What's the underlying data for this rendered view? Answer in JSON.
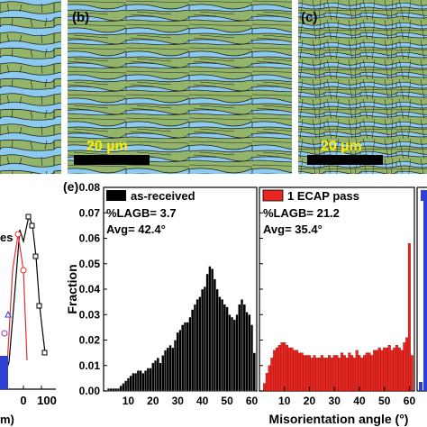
{
  "panel_labels": {
    "b": "(b)",
    "c": "(c)",
    "e": "(e)"
  },
  "micrographs": {
    "scale_bar_b": "20 µm",
    "scale_bar_c": "20 µm",
    "colors": {
      "grain_green": "#93b56b",
      "grain_blue": "#8dcaf0",
      "boundary": "#1f1f1f",
      "scale_text": "#ffee00"
    }
  },
  "left_partial": {
    "text_es": "es",
    "text_m": "m)",
    "x_ticks": [
      "0",
      "100"
    ]
  },
  "shared": {
    "ylabel": "Fraction",
    "xlabel": "Misorientation angle (°)",
    "y_ticks": [
      "0.00",
      "0.01",
      "0.02",
      "0.03",
      "0.04",
      "0.05",
      "0.06",
      "0.07",
      "0.08"
    ],
    "x_ticks": [
      "10",
      "20",
      "30",
      "40",
      "50",
      "60"
    ]
  },
  "chart_data": [
    {
      "type": "bar",
      "title": "",
      "legend": "as-received",
      "annotation_lagb": "%LAGB= 3.7",
      "annotation_avg": "Avg= 42.4°",
      "color": "#000000",
      "xlabel": "Misorientation angle (°)",
      "ylabel": "Fraction",
      "xlim": [
        0,
        62
      ],
      "ylim": [
        0,
        0.08
      ],
      "bin_width": 1,
      "x": [
        2,
        3,
        4,
        5,
        6,
        7,
        8,
        9,
        10,
        11,
        12,
        13,
        14,
        15,
        16,
        17,
        18,
        19,
        20,
        21,
        22,
        23,
        24,
        25,
        26,
        27,
        28,
        29,
        30,
        31,
        32,
        33,
        34,
        35,
        36,
        37,
        38,
        39,
        40,
        41,
        42,
        43,
        44,
        45,
        46,
        47,
        48,
        49,
        50,
        51,
        52,
        53,
        54,
        55,
        56,
        57,
        58,
        59,
        60,
        61
      ],
      "values": [
        0.001,
        0.001,
        0.001,
        0.001,
        0.001,
        0.002,
        0.003,
        0.004,
        0.005,
        0.006,
        0.007,
        0.007,
        0.008,
        0.008,
        0.007,
        0.008,
        0.009,
        0.009,
        0.011,
        0.012,
        0.013,
        0.011,
        0.014,
        0.016,
        0.017,
        0.018,
        0.017,
        0.02,
        0.023,
        0.024,
        0.026,
        0.027,
        0.027,
        0.029,
        0.032,
        0.034,
        0.036,
        0.037,
        0.04,
        0.041,
        0.046,
        0.049,
        0.048,
        0.044,
        0.04,
        0.037,
        0.036,
        0.034,
        0.033,
        0.03,
        0.029,
        0.028,
        0.03,
        0.034,
        0.036,
        0.034,
        0.031,
        0.03,
        0.026,
        0.015
      ]
    },
    {
      "type": "bar",
      "title": "",
      "legend": "1 ECAP pass",
      "annotation_lagb": "%LAGB= 21.2",
      "annotation_avg": "Avg= 35.4°",
      "color": "#e8251f",
      "xlabel": "Misorientation angle (°)",
      "ylabel": "",
      "xlim": [
        0,
        62
      ],
      "ylim": [
        0,
        0.08
      ],
      "bin_width": 1,
      "x": [
        2,
        3,
        4,
        5,
        6,
        7,
        8,
        9,
        10,
        11,
        12,
        13,
        14,
        15,
        16,
        17,
        18,
        19,
        20,
        21,
        22,
        23,
        24,
        25,
        26,
        27,
        28,
        29,
        30,
        31,
        32,
        33,
        34,
        35,
        36,
        37,
        38,
        39,
        40,
        41,
        42,
        43,
        44,
        45,
        46,
        47,
        48,
        49,
        50,
        51,
        52,
        53,
        54,
        55,
        56,
        57,
        58,
        59,
        60,
        61
      ],
      "values": [
        0.003,
        0.007,
        0.01,
        0.013,
        0.016,
        0.017,
        0.018,
        0.019,
        0.019,
        0.018,
        0.017,
        0.017,
        0.016,
        0.016,
        0.015,
        0.015,
        0.014,
        0.014,
        0.014,
        0.013,
        0.014,
        0.013,
        0.013,
        0.014,
        0.013,
        0.013,
        0.014,
        0.013,
        0.014,
        0.014,
        0.013,
        0.015,
        0.014,
        0.013,
        0.015,
        0.014,
        0.013,
        0.016,
        0.014,
        0.013,
        0.014,
        0.015,
        0.015,
        0.014,
        0.016,
        0.016,
        0.017,
        0.016,
        0.017,
        0.017,
        0.018,
        0.016,
        0.017,
        0.018,
        0.017,
        0.016,
        0.019,
        0.021,
        0.058,
        0.014
      ]
    }
  ]
}
